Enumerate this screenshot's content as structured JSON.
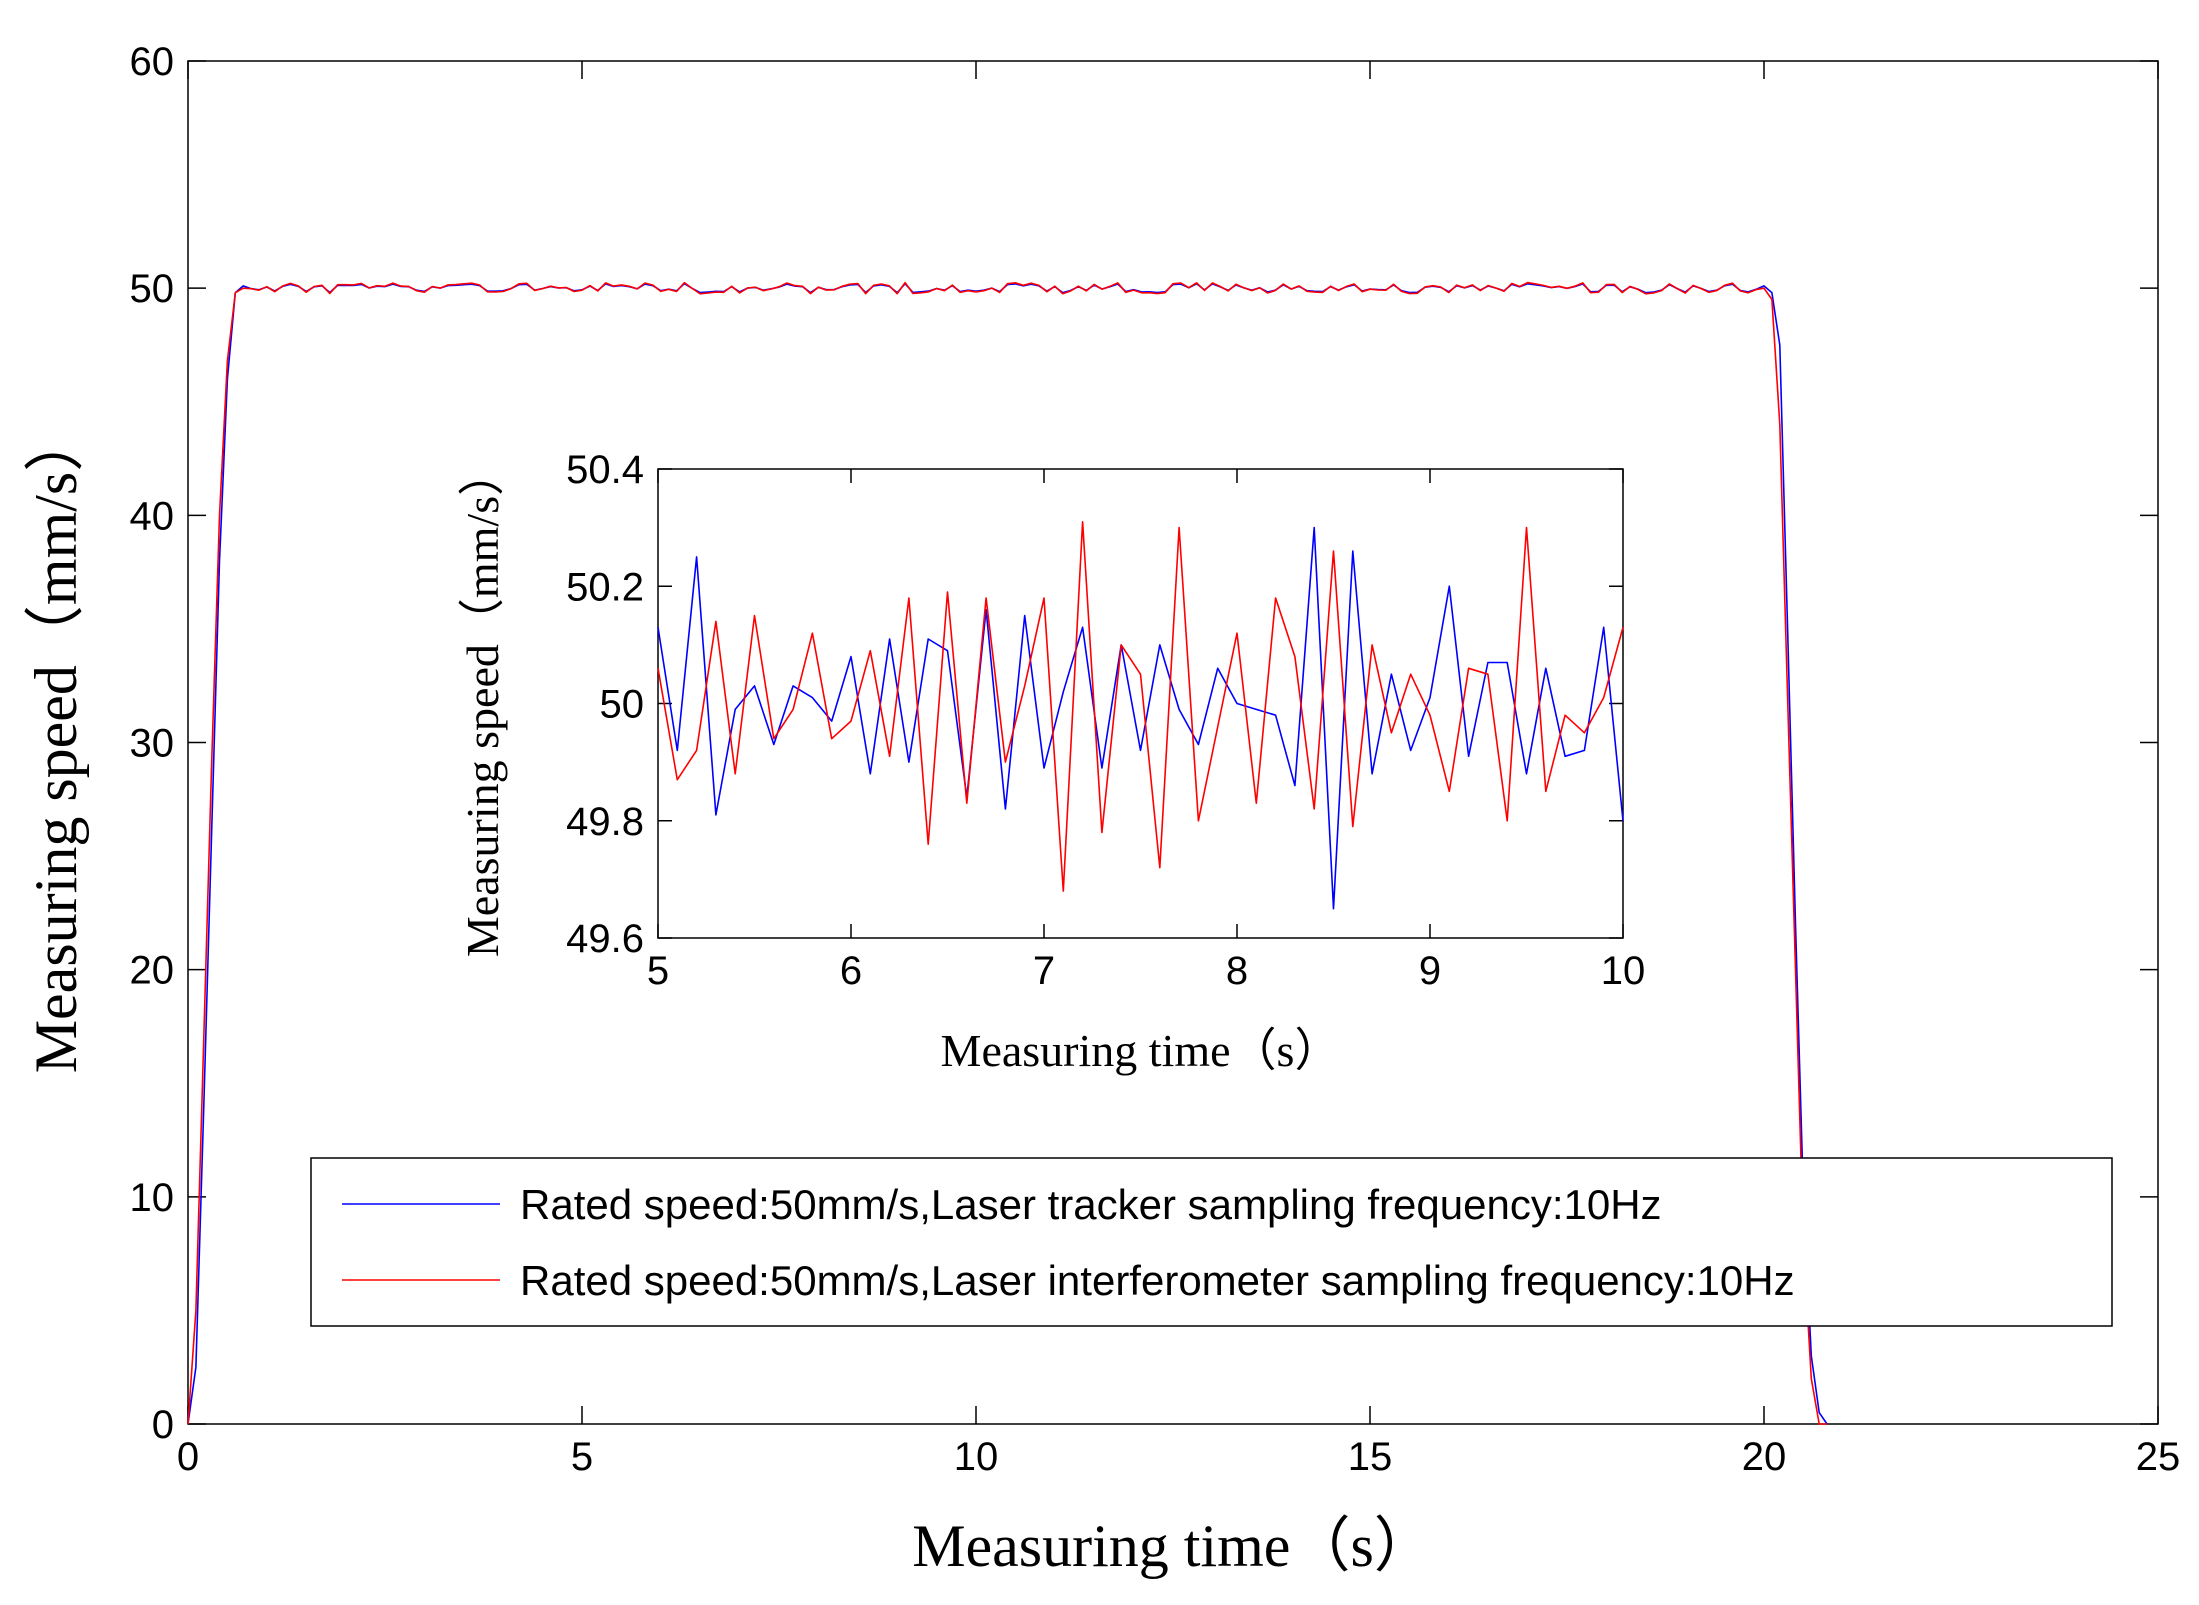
{
  "chart_data": [
    {
      "id": "main",
      "type": "line",
      "title": "",
      "xlabel": "Measuring time（s）",
      "ylabel": "Measuring speed（mm/s）",
      "xlim": [
        0,
        25
      ],
      "ylim": [
        0,
        60
      ],
      "xticks": [
        "0",
        "5",
        "10",
        "15",
        "20",
        "25"
      ],
      "yticks": [
        "0",
        "10",
        "20",
        "30",
        "40",
        "50",
        "60"
      ],
      "grid": false,
      "legend_position": "lower-center",
      "series": [
        {
          "name": "Rated speed:50mm/s,Laser tracker sampling frequency:10Hz",
          "color": "#0000ff",
          "ramp": {
            "x": [
              0,
              0.1,
              0.2,
              0.3,
              0.4,
              0.5,
              0.6,
              0.7
            ],
            "y": [
              0,
              2.5,
              14,
              26,
              38,
              46,
              49.8,
              50.1
            ]
          },
          "plateau": {
            "start": 0.7,
            "end": 20,
            "step": 0.1,
            "mean": 50,
            "amp": 0.2
          },
          "fall": {
            "x": [
              20.0,
              20.1,
              20.2,
              20.3,
              20.4,
              20.5,
              20.6,
              20.7,
              20.8
            ],
            "y": [
              50.1,
              49.8,
              47.5,
              35,
              22,
              10,
              3,
              0.5,
              0
            ]
          }
        },
        {
          "name": "Rated speed:50mm/s,Laser interferometer sampling frequency:10Hz",
          "color": "#ff0000",
          "ramp": {
            "x": [
              0,
              0.1,
              0.2,
              0.3,
              0.4,
              0.5,
              0.6,
              0.7
            ],
            "y": [
              0,
              5,
              17,
              29,
              40,
              46.8,
              49.8,
              50
            ]
          },
          "plateau": {
            "start": 0.7,
            "end": 20,
            "step": 0.1,
            "mean": 50,
            "amp": 0.25
          },
          "fall": {
            "x": [
              20.0,
              20.1,
              20.2,
              20.3,
              20.4,
              20.5,
              20.6,
              20.7,
              20.8
            ],
            "y": [
              50,
              49.5,
              44,
              32,
              20,
              8,
              2,
              0,
              0
            ]
          }
        }
      ]
    },
    {
      "id": "inset",
      "type": "line",
      "title": "",
      "xlabel": "Measuring time（s）",
      "ylabel": "Measuring speed（mm/s）",
      "xlim": [
        5,
        10
      ],
      "ylim": [
        49.6,
        50.4
      ],
      "xticks": [
        "5",
        "6",
        "7",
        "8",
        "9",
        "10"
      ],
      "yticks": [
        "49.6",
        "49.8",
        "50",
        "50.2",
        "50.4"
      ],
      "grid": false,
      "series": [
        {
          "name": "Laser tracker",
          "color": "#0000ff",
          "x": [
            5.0,
            5.1,
            5.2,
            5.3,
            5.4,
            5.5,
            5.6,
            5.7,
            5.8,
            5.9,
            6.0,
            6.1,
            6.2,
            6.3,
            6.4,
            6.5,
            6.6,
            6.7,
            6.8,
            6.9,
            7.0,
            7.1,
            7.2,
            7.3,
            7.4,
            7.5,
            7.6,
            7.7,
            7.8,
            7.9,
            8.0,
            8.1,
            8.2,
            8.3,
            8.4,
            8.5,
            8.6,
            8.7,
            8.8,
            8.9,
            9.0,
            9.1,
            9.2,
            9.3,
            9.4,
            9.5,
            9.6,
            9.7,
            9.8,
            9.9,
            10.0
          ],
          "y": [
            50.13,
            49.92,
            50.25,
            49.81,
            49.99,
            50.03,
            49.93,
            50.03,
            50.01,
            49.97,
            50.08,
            49.88,
            50.11,
            49.9,
            50.11,
            50.09,
            49.84,
            50.16,
            49.82,
            50.15,
            49.89,
            50.02,
            50.13,
            49.89,
            50.1,
            49.92,
            50.1,
            49.99,
            49.93,
            50.06,
            50.0,
            49.99,
            49.98,
            49.86,
            50.3,
            49.65,
            50.26,
            49.88,
            50.05,
            49.92,
            50.01,
            50.2,
            49.91,
            50.07,
            50.07,
            49.88,
            50.06,
            49.91,
            49.92,
            50.13,
            49.8
          ]
        },
        {
          "name": "Laser interferometer",
          "color": "#ff0000",
          "x": [
            5.0,
            5.1,
            5.2,
            5.3,
            5.4,
            5.5,
            5.6,
            5.7,
            5.8,
            5.9,
            6.0,
            6.1,
            6.2,
            6.3,
            6.4,
            6.5,
            6.6,
            6.7,
            6.8,
            6.9,
            7.0,
            7.1,
            7.2,
            7.3,
            7.4,
            7.5,
            7.6,
            7.7,
            7.8,
            7.9,
            8.0,
            8.1,
            8.2,
            8.3,
            8.4,
            8.5,
            8.6,
            8.7,
            8.8,
            8.9,
            9.0,
            9.1,
            9.2,
            9.3,
            9.4,
            9.5,
            9.6,
            9.7,
            9.8,
            9.9,
            10.0
          ],
          "y": [
            50.06,
            49.87,
            49.92,
            50.14,
            49.88,
            50.15,
            49.94,
            49.99,
            50.12,
            49.94,
            49.97,
            50.09,
            49.91,
            50.18,
            49.76,
            50.19,
            49.83,
            50.18,
            49.9,
            50.03,
            50.18,
            49.68,
            50.31,
            49.78,
            50.1,
            50.05,
            49.72,
            50.3,
            49.8,
            49.96,
            50.12,
            49.83,
            50.18,
            50.08,
            49.82,
            50.26,
            49.79,
            50.1,
            49.95,
            50.05,
            49.98,
            49.85,
            50.06,
            50.05,
            49.8,
            50.3,
            49.85,
            49.98,
            49.95,
            50.01,
            50.13
          ]
        }
      ]
    }
  ]
}
